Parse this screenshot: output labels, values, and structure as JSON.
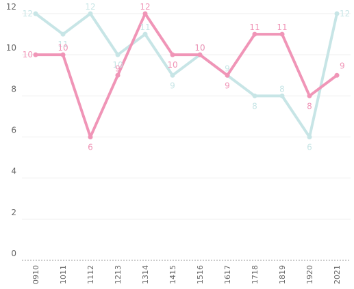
{
  "chart_data": {
    "type": "line",
    "categories": [
      "0910",
      "1011",
      "1112",
      "1213",
      "1314",
      "1415",
      "1516",
      "1617",
      "1718",
      "1819",
      "1920",
      "2021"
    ],
    "series": [
      {
        "values": [
          12,
          11,
          12,
          10,
          11,
          9,
          10,
          9,
          8,
          8,
          6,
          12
        ],
        "color": "#c7e5e6"
      },
      {
        "values": [
          10,
          10,
          6,
          9,
          12,
          10,
          10,
          9,
          11,
          11,
          8,
          9
        ],
        "color": "#f095b7"
      }
    ],
    "y_ticks": [
      0,
      2,
      4,
      6,
      8,
      10,
      12
    ],
    "ylim": [
      0,
      12
    ],
    "grid": true,
    "xlabel": "",
    "ylabel": ""
  }
}
